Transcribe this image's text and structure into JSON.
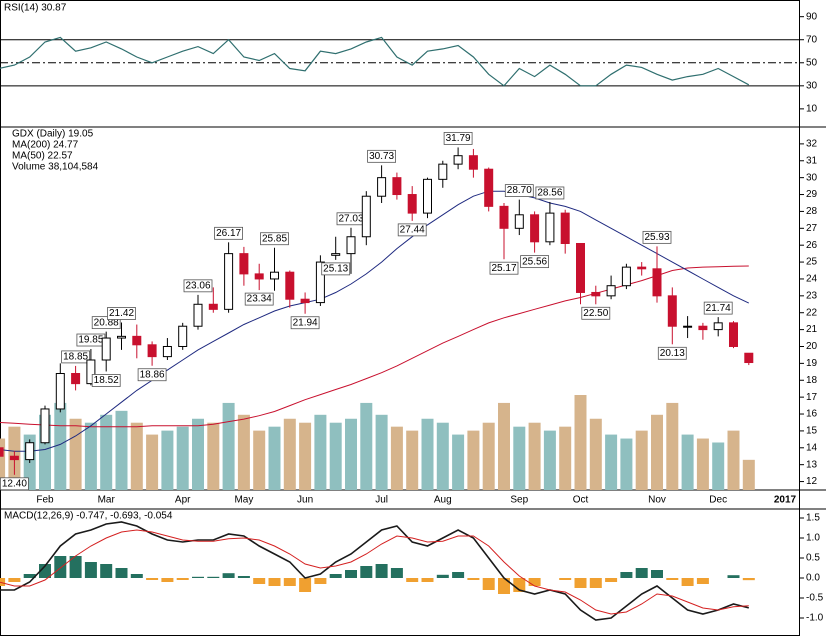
{
  "chart_data": [
    {
      "type": "rsi",
      "legend": "RSI(14) 30.87",
      "color": "#2f6f6f",
      "values": [
        45,
        48,
        55,
        68,
        72,
        60,
        63,
        68,
        62,
        55,
        50,
        55,
        60,
        64,
        58,
        70,
        55,
        52,
        58,
        45,
        43,
        60,
        58,
        62,
        68,
        72,
        55,
        48,
        60,
        62,
        65,
        55,
        40,
        30,
        45,
        38,
        48,
        40,
        30,
        30,
        40,
        48,
        46,
        40,
        35,
        38,
        40,
        45,
        38,
        30.87
      ],
      "ylim": [
        -4,
        101
      ],
      "yticks": [
        90,
        70,
        50,
        30,
        10
      ],
      "levels": [
        70,
        50,
        30
      ]
    },
    {
      "type": "candlestick",
      "legend": "GDX (Daily) 19.05",
      "year_label": "2017",
      "categories": [
        null,
        null,
        null,
        "Feb",
        null,
        null,
        null,
        "Mar",
        null,
        null,
        null,
        null,
        "Apr",
        null,
        null,
        null,
        "May",
        null,
        null,
        null,
        "Jun",
        null,
        null,
        null,
        null,
        "Jul",
        null,
        null,
        null,
        "Aug",
        null,
        null,
        null,
        null,
        "Sep",
        null,
        null,
        null,
        "Oct",
        null,
        null,
        null,
        null,
        "Nov",
        null,
        null,
        null,
        "Dec",
        null,
        null
      ],
      "open": [
        14.0,
        13.5,
        13.3,
        14.3,
        16.3,
        18.4,
        17.8,
        19.2,
        20.5,
        20.6,
        20.1,
        19.4,
        20.0,
        21.2,
        22.5,
        22.2,
        25.5,
        24.3,
        24.0,
        24.4,
        22.8,
        22.6,
        25.4,
        25.5,
        26.5,
        28.9,
        30.0,
        29.0,
        27.9,
        29.9,
        30.8,
        31.3,
        30.5,
        28.3,
        27.0,
        27.8,
        26.2,
        27.9,
        26.1,
        23.2,
        23.0,
        23.6,
        24.7,
        24.6,
        23.0,
        21.2,
        21.2,
        21.0,
        21.4,
        19.6
      ],
      "high": [
        14.3,
        13.8,
        14.5,
        16.5,
        19.0,
        18.85,
        19.85,
        20.88,
        21.42,
        21.3,
        20.3,
        20.5,
        21.4,
        23.06,
        23.5,
        26.17,
        25.9,
        24.9,
        25.85,
        24.5,
        23.2,
        25.4,
        26.5,
        27.03,
        29.2,
        30.73,
        30.3,
        29.5,
        30.0,
        31.0,
        31.79,
        31.7,
        30.6,
        28.5,
        28.7,
        28.0,
        28.56,
        28.1,
        26.1,
        23.6,
        24.2,
        24.9,
        25.0,
        25.93,
        23.5,
        21.8,
        21.4,
        21.74,
        21.5,
        19.6
      ],
      "low": [
        13.2,
        12.4,
        13.1,
        14.2,
        16.1,
        17.4,
        17.7,
        18.52,
        19.8,
        19.3,
        18.86,
        19.2,
        19.8,
        21.0,
        22.0,
        22.0,
        23.6,
        23.34,
        23.3,
        22.3,
        21.94,
        22.4,
        25.13,
        24.3,
        26.0,
        28.5,
        28.7,
        27.44,
        27.6,
        29.4,
        30.5,
        30.0,
        28.0,
        25.17,
        26.6,
        25.56,
        26.0,
        25.5,
        22.5,
        22.5,
        22.8,
        23.4,
        24.2,
        22.6,
        20.13,
        20.5,
        20.4,
        20.6,
        19.9,
        18.9
      ],
      "close": [
        13.5,
        13.3,
        14.3,
        16.3,
        18.4,
        17.8,
        19.2,
        20.5,
        20.6,
        20.1,
        19.4,
        20.0,
        21.2,
        22.5,
        22.2,
        25.5,
        24.3,
        24.0,
        24.4,
        22.8,
        22.6,
        25.0,
        25.5,
        26.5,
        28.9,
        30.0,
        29.0,
        27.9,
        29.9,
        30.8,
        31.3,
        30.5,
        28.3,
        27.0,
        27.8,
        26.2,
        27.9,
        26.1,
        23.2,
        23.0,
        23.6,
        24.7,
        24.6,
        23.0,
        21.2,
        21.2,
        21.0,
        21.4,
        20.0,
        19.05
      ],
      "high_labels": [
        null,
        null,
        null,
        null,
        null,
        "18.85",
        "19.85",
        "20.88",
        "21.42",
        null,
        null,
        null,
        null,
        "23.06",
        null,
        "26.17",
        null,
        null,
        "25.85",
        null,
        null,
        null,
        null,
        "27.03",
        null,
        "30.73",
        null,
        null,
        null,
        null,
        "31.79",
        null,
        null,
        null,
        "28.70",
        null,
        "28.56",
        null,
        null,
        null,
        null,
        null,
        null,
        "25.93",
        null,
        null,
        null,
        "21.74",
        null,
        null
      ],
      "low_labels": [
        null,
        "12.40",
        null,
        null,
        null,
        null,
        null,
        "18.52",
        null,
        null,
        "18.86",
        null,
        null,
        null,
        null,
        null,
        null,
        "23.34",
        null,
        null,
        "21.94",
        null,
        "25.13",
        null,
        null,
        null,
        null,
        "27.44",
        null,
        null,
        null,
        null,
        null,
        "25.17",
        null,
        "25.56",
        null,
        null,
        null,
        "22.50",
        null,
        null,
        null,
        null,
        "20.13",
        null,
        null,
        null,
        null,
        null
      ],
      "up_color": "#000000",
      "down_color": "#c8102e",
      "series": [
        {
          "name": "MA(200) 24.77",
          "color": "#c8102e",
          "values": [
            15.5,
            15.45,
            15.4,
            15.35,
            15.3,
            15.3,
            15.25,
            15.25,
            15.25,
            15.25,
            15.3,
            15.3,
            15.3,
            15.3,
            15.4,
            15.55,
            15.7,
            15.9,
            16.15,
            16.5,
            16.85,
            17.15,
            17.45,
            17.75,
            18.1,
            18.45,
            18.85,
            19.3,
            19.75,
            20.2,
            20.6,
            21.0,
            21.4,
            21.7,
            21.95,
            22.2,
            22.45,
            22.7,
            22.9,
            23.15,
            23.4,
            23.65,
            23.9,
            24.2,
            24.5,
            24.65,
            24.7,
            24.72,
            24.75,
            24.77
          ]
        },
        {
          "name": "MA(50) 22.57",
          "color": "#1f2a80",
          "values": [
            13.9,
            13.8,
            13.8,
            13.9,
            14.2,
            14.7,
            15.3,
            16.0,
            16.7,
            17.4,
            18.0,
            18.6,
            19.2,
            19.8,
            20.3,
            20.8,
            21.3,
            21.7,
            22.1,
            22.4,
            22.6,
            22.8,
            23.2,
            23.7,
            24.3,
            25.0,
            25.8,
            26.5,
            27.2,
            27.8,
            28.4,
            28.9,
            29.2,
            29.2,
            29.0,
            28.8,
            28.5,
            28.3,
            28.0,
            27.5,
            27.0,
            26.5,
            26.0,
            25.5,
            25.0,
            24.5,
            24.0,
            23.5,
            23.0,
            22.57
          ]
        }
      ],
      "volume": {
        "name": "Volume 38,104,584",
        "color": "#1e6f6f",
        "up_color": "#8fbfbf",
        "down_color": "#d6b48c",
        "values": [
          65000000,
          80000000,
          70000000,
          95000000,
          110000000,
          90000000,
          85000000,
          95000000,
          100000000,
          85000000,
          70000000,
          75000000,
          80000000,
          90000000,
          85000000,
          110000000,
          95000000,
          75000000,
          80000000,
          90000000,
          85000000,
          95000000,
          85000000,
          90000000,
          110000000,
          95000000,
          80000000,
          75000000,
          90000000,
          85000000,
          70000000,
          75000000,
          85000000,
          110000000,
          80000000,
          85000000,
          75000000,
          80000000,
          120000000,
          90000000,
          70000000,
          65000000,
          75000000,
          95000000,
          110000000,
          70000000,
          65000000,
          60000000,
          75000000,
          38104584
        ]
      },
      "ylim": [
        11.5,
        33
      ],
      "yticks": [
        12,
        13,
        14,
        15,
        16,
        17,
        18,
        19,
        20,
        21,
        22,
        23,
        24,
        25,
        26,
        27,
        28,
        29,
        30,
        31,
        32
      ]
    },
    {
      "type": "macd",
      "legend": "MACD(12,26,9) -0.747, -0.693, -0.054",
      "series": [
        {
          "color": "#1a1a1a",
          "values": [
            -0.3,
            -0.3,
            -0.1,
            0.3,
            0.8,
            1.1,
            1.2,
            1.35,
            1.4,
            1.3,
            1.1,
            0.95,
            0.9,
            0.95,
            0.95,
            1.1,
            1.05,
            0.8,
            0.6,
            0.4,
            0.0,
            0.1,
            0.4,
            0.6,
            0.9,
            1.2,
            1.3,
            0.9,
            0.8,
            1.0,
            1.2,
            1.0,
            0.5,
            0.0,
            -0.3,
            -0.4,
            -0.3,
            -0.4,
            -0.8,
            -1.05,
            -1.0,
            -0.7,
            -0.4,
            -0.2,
            -0.5,
            -0.8,
            -0.9,
            -0.8,
            -0.65,
            -0.747
          ]
        },
        {
          "color": "#d42020",
          "values": [
            -0.1,
            -0.2,
            -0.2,
            -0.05,
            0.25,
            0.55,
            0.8,
            1.0,
            1.15,
            1.2,
            1.15,
            1.05,
            0.95,
            0.92,
            0.92,
            0.98,
            1.0,
            0.95,
            0.8,
            0.6,
            0.35,
            0.25,
            0.3,
            0.4,
            0.6,
            0.85,
            1.05,
            1.0,
            0.9,
            0.92,
            1.05,
            1.05,
            0.8,
            0.4,
            0.05,
            -0.2,
            -0.3,
            -0.35,
            -0.55,
            -0.8,
            -0.9,
            -0.85,
            -0.65,
            -0.4,
            -0.45,
            -0.6,
            -0.75,
            -0.8,
            -0.72,
            -0.693
          ]
        }
      ],
      "histogram": {
        "up_color": "#24705f",
        "down_color": "#f0a030",
        "values": [
          -0.2,
          -0.1,
          0.1,
          0.35,
          0.55,
          0.55,
          0.4,
          0.35,
          0.25,
          0.1,
          -0.05,
          -0.1,
          -0.05,
          0.03,
          0.03,
          0.12,
          0.05,
          -0.15,
          -0.2,
          -0.2,
          -0.35,
          -0.15,
          0.1,
          0.2,
          0.3,
          0.35,
          0.25,
          -0.1,
          -0.1,
          0.08,
          0.15,
          -0.05,
          -0.3,
          -0.4,
          -0.35,
          -0.2,
          0,
          -0.05,
          -0.25,
          -0.25,
          -0.1,
          0.15,
          0.25,
          0.2,
          -0.05,
          -0.2,
          -0.15,
          0,
          0.07,
          -0.054
        ]
      },
      "ylim": [
        -1.45,
        1.7
      ],
      "yticks": [
        1.5,
        {
          "value": 1,
          "label": "1.0"
        },
        0.5,
        {
          "value": 0,
          "label": "0.0"
        },
        -0.5,
        {
          "value": -1,
          "label": "-1.0"
        }
      ]
    }
  ]
}
